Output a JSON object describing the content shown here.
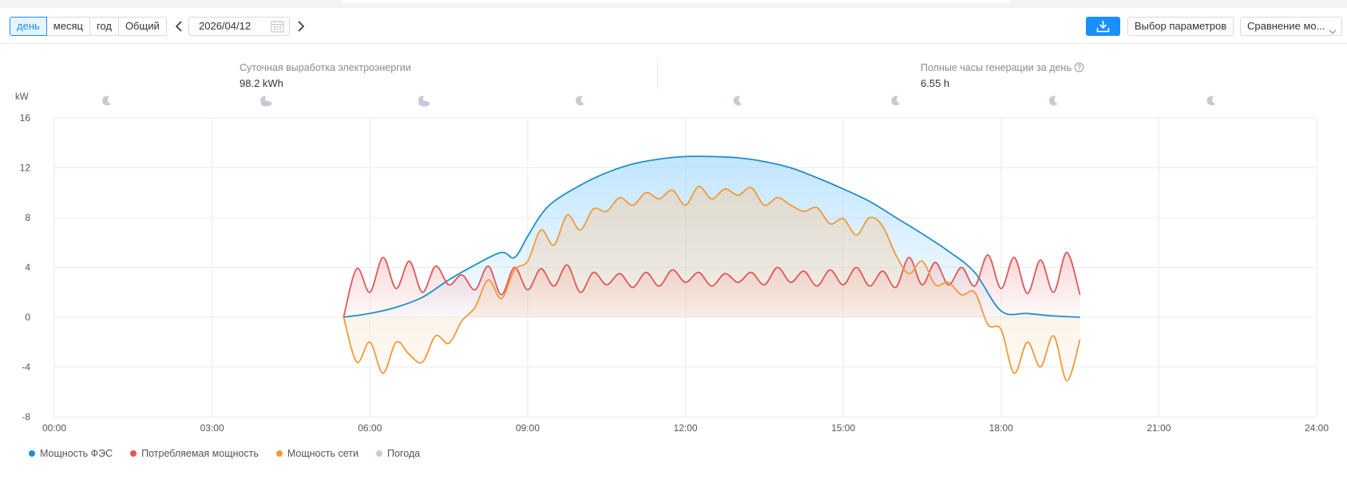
{
  "toolbar": {
    "periods": [
      "день",
      "месяц",
      "год",
      "Общий"
    ],
    "active_period": "день",
    "date": "2026/04/12",
    "params_label": "Выбор параметров",
    "compare_label": "Сравнение мо..."
  },
  "stats": {
    "daily_label": "Суточная выработка электроэнергии",
    "daily_value": "98.2 kWh",
    "hours_label": "Полные часы генерации за день",
    "hours_value": "6.55  h"
  },
  "colors": {
    "accent": "#1890ff",
    "pv": "#1e8fc8",
    "consumption": "#de5a5a",
    "grid": "#ef9a3c",
    "weather": "#c9c9d6"
  },
  "chart_data": {
    "type": "line",
    "ylabel": "kW",
    "ylim": [
      -8,
      16
    ],
    "yticks": [
      16,
      12,
      8,
      4,
      0,
      -4,
      -8
    ],
    "xlim": [
      0,
      24
    ],
    "xticks": [
      "00:00",
      "03:00",
      "06:00",
      "09:00",
      "12:00",
      "15:00",
      "18:00",
      "21:00",
      "24:00"
    ],
    "grid": true,
    "legend_position": "bottom-left",
    "weather_icons": [
      {
        "time": 1.0,
        "icon": "moon-icon"
      },
      {
        "time": 4.0,
        "icon": "cloudy-moon-icon"
      },
      {
        "time": 7.0,
        "icon": "cloudy-moon-icon"
      },
      {
        "time": 10.0,
        "icon": "moon-icon"
      },
      {
        "time": 13.0,
        "icon": "moon-icon"
      },
      {
        "time": 16.0,
        "icon": "moon-icon"
      },
      {
        "time": 19.0,
        "icon": "moon-icon"
      },
      {
        "time": 22.0,
        "icon": "moon-icon"
      }
    ],
    "series": [
      {
        "name": "Мощность ФЭС",
        "x": [
          5.5,
          6.0,
          6.5,
          7.0,
          7.5,
          8.0,
          8.5,
          8.75,
          9.0,
          9.25,
          9.5,
          10.0,
          10.5,
          11.0,
          11.5,
          12.0,
          12.5,
          13.0,
          13.5,
          14.0,
          14.5,
          15.0,
          15.5,
          16.0,
          16.5,
          17.0,
          17.5,
          18.0,
          18.5,
          19.0,
          19.5
        ],
        "values": [
          0.0,
          0.3,
          0.8,
          1.6,
          3.0,
          4.2,
          5.2,
          4.8,
          6.5,
          8.2,
          9.3,
          10.6,
          11.6,
          12.3,
          12.7,
          12.9,
          12.9,
          12.8,
          12.5,
          12.0,
          11.2,
          10.3,
          9.3,
          8.0,
          6.7,
          5.3,
          3.6,
          0.5,
          0.3,
          0.1,
          0.0
        ]
      },
      {
        "name": "Потребляемая мощность",
        "x": [
          5.5,
          5.75,
          6.0,
          6.25,
          6.5,
          6.75,
          7.0,
          7.25,
          7.5,
          7.75,
          8.0,
          8.25,
          8.5,
          8.75,
          9.0,
          9.25,
          9.5,
          9.75,
          10.0,
          10.25,
          10.5,
          10.75,
          11.0,
          11.25,
          11.5,
          11.75,
          12.0,
          12.25,
          12.5,
          12.75,
          13.0,
          13.25,
          13.5,
          13.75,
          14.0,
          14.25,
          14.5,
          14.75,
          15.0,
          15.25,
          15.5,
          15.75,
          16.0,
          16.25,
          16.5,
          16.75,
          17.0,
          17.25,
          17.5,
          17.75,
          18.0,
          18.25,
          18.5,
          18.75,
          19.0,
          19.25,
          19.5
        ],
        "values": [
          0.0,
          3.9,
          2.0,
          4.8,
          2.3,
          4.5,
          2.0,
          4.1,
          2.6,
          3.4,
          2.2,
          4.1,
          1.8,
          4.0,
          2.2,
          3.9,
          2.5,
          4.2,
          2.0,
          3.6,
          2.6,
          3.5,
          2.4,
          3.6,
          2.5,
          3.8,
          2.8,
          3.6,
          2.5,
          3.5,
          2.8,
          3.6,
          2.6,
          4.0,
          2.8,
          3.7,
          2.5,
          3.8,
          2.6,
          4.0,
          2.5,
          3.7,
          2.4,
          4.8,
          2.6,
          4.4,
          2.6,
          4.0,
          2.5,
          5.0,
          2.3,
          4.8,
          1.9,
          4.6,
          2.0,
          5.2,
          1.8
        ]
      },
      {
        "name": "Мощность сети",
        "x": [
          5.5,
          5.75,
          6.0,
          6.25,
          6.5,
          6.75,
          7.0,
          7.25,
          7.5,
          7.75,
          8.0,
          8.25,
          8.5,
          8.75,
          9.0,
          9.25,
          9.5,
          9.75,
          10.0,
          10.25,
          10.5,
          10.75,
          11.0,
          11.25,
          11.5,
          11.75,
          12.0,
          12.25,
          12.5,
          12.75,
          13.0,
          13.25,
          13.5,
          13.75,
          14.0,
          14.25,
          14.5,
          14.75,
          15.0,
          15.25,
          15.5,
          15.75,
          16.0,
          16.25,
          16.5,
          16.75,
          17.0,
          17.25,
          17.5,
          17.75,
          18.0,
          18.25,
          18.5,
          18.75,
          19.0,
          19.25,
          19.5
        ],
        "values": [
          0.0,
          -3.6,
          -2.0,
          -4.5,
          -2.0,
          -3.0,
          -3.6,
          -1.5,
          -2.1,
          -0.3,
          0.8,
          3.0,
          1.5,
          3.8,
          4.5,
          7.0,
          5.8,
          8.2,
          7.0,
          8.7,
          8.5,
          9.6,
          9.0,
          10.0,
          9.5,
          10.2,
          9.0,
          10.5,
          9.5,
          10.3,
          9.8,
          10.4,
          9.0,
          9.6,
          9.0,
          8.5,
          8.8,
          7.5,
          7.9,
          6.6,
          8.0,
          7.3,
          5.0,
          3.5,
          4.5,
          2.6,
          2.8,
          1.8,
          2.0,
          -0.6,
          -1.0,
          -4.5,
          -2.0,
          -4.0,
          -1.5,
          -5.1,
          -1.8
        ]
      },
      {
        "name": "Погода",
        "x": [],
        "values": []
      }
    ]
  }
}
